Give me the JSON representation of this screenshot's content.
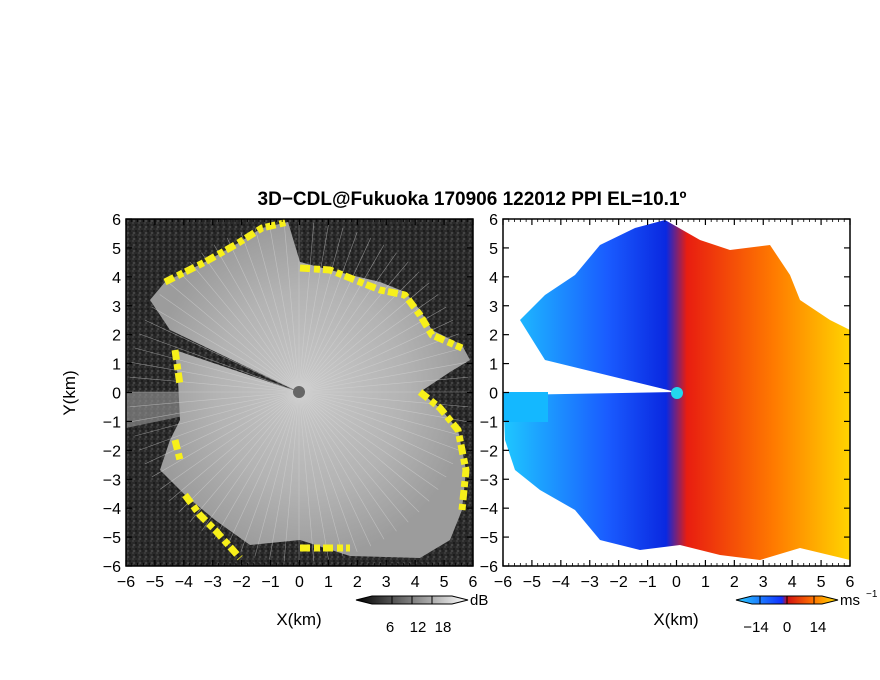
{
  "title": "3D−CDL@Fukuoka 170906 122012 PPI EL=10.1º",
  "chart_data": [
    {
      "type": "heatmap",
      "panel": "left",
      "description_quantity": "signal intensity",
      "xlabel": "X(km)",
      "ylabel": "Y(km)",
      "xlim": [
        -6,
        6
      ],
      "ylim": [
        -6,
        6
      ],
      "xticks": [
        "−6",
        "−5",
        "−4",
        "−3",
        "−2",
        "−1",
        "0",
        "1",
        "2",
        "3",
        "4",
        "5",
        "6"
      ],
      "yticks": [
        "6",
        "5",
        "4",
        "3",
        "2",
        "1",
        "0",
        "−1",
        "−2",
        "−3",
        "−4",
        "−5",
        "−6"
      ],
      "colormap": "grayscale",
      "highlight_color": "#ffff22",
      "colorbar": {
        "unit": "dB",
        "ticks": [
          "6",
          "12",
          "18"
        ],
        "tick_values": [
          6,
          12,
          18
        ],
        "range": [
          0,
          24
        ]
      }
    },
    {
      "type": "heatmap",
      "panel": "right",
      "description_quantity": "radial velocity",
      "xlabel": "X(km)",
      "xlim": [
        -6,
        6
      ],
      "ylim": [
        -6,
        6
      ],
      "xticks": [
        "−6",
        "−5",
        "−4",
        "−3",
        "−2",
        "−1",
        "0",
        "1",
        "2",
        "3",
        "4",
        "5",
        "6"
      ],
      "yticks": [
        "6",
        "5",
        "4",
        "3",
        "2",
        "1",
        "0",
        "−1",
        "−2",
        "−3",
        "−4",
        "−5",
        "−6"
      ],
      "colormap": "cyan-blue-red-orange-yellow",
      "colorbar": {
        "unit": "ms",
        "unit_exponent": "−1",
        "ticks": [
          "−14",
          "0",
          "14"
        ],
        "tick_values": [
          -14,
          0,
          14
        ],
        "range": [
          -21,
          21
        ]
      }
    }
  ]
}
